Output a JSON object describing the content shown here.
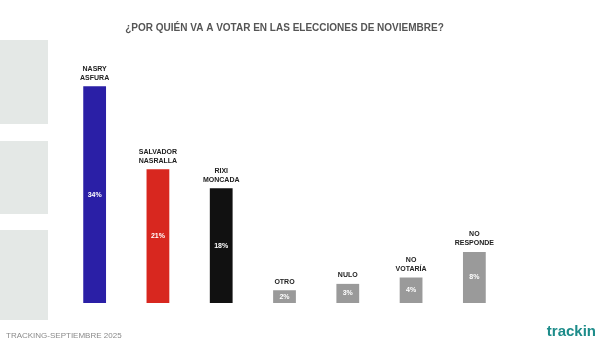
{
  "chart_data": {
    "type": "bar",
    "title": "¿POR QUIÉN VA A VOTAR EN LAS ELECCIONES DE NOVIEMBRE?",
    "categories": [
      "NASRY ASFURA",
      "SALVADOR NASRALLA",
      "RIXI MONCADA",
      "OTRO",
      "NULO",
      "NO VOTARÍA",
      "NO RESPONDE"
    ],
    "values": [
      34,
      21,
      18,
      2,
      3,
      4,
      8
    ],
    "value_labels": [
      "34%",
      "21%",
      "18%",
      "2%",
      "3%",
      "4%",
      "8%"
    ],
    "colors": [
      "#2a1fa6",
      "#d8271f",
      "#111111",
      "#9a9a9a",
      "#9a9a9a",
      "#9a9a9a",
      "#9a9a9a"
    ],
    "ylim": [
      0,
      40
    ],
    "grid": false,
    "tick_labels": false,
    "data_labels": true,
    "source": "TRACKING-SEPTIEMBRE 2025",
    "logo": "trackin"
  }
}
